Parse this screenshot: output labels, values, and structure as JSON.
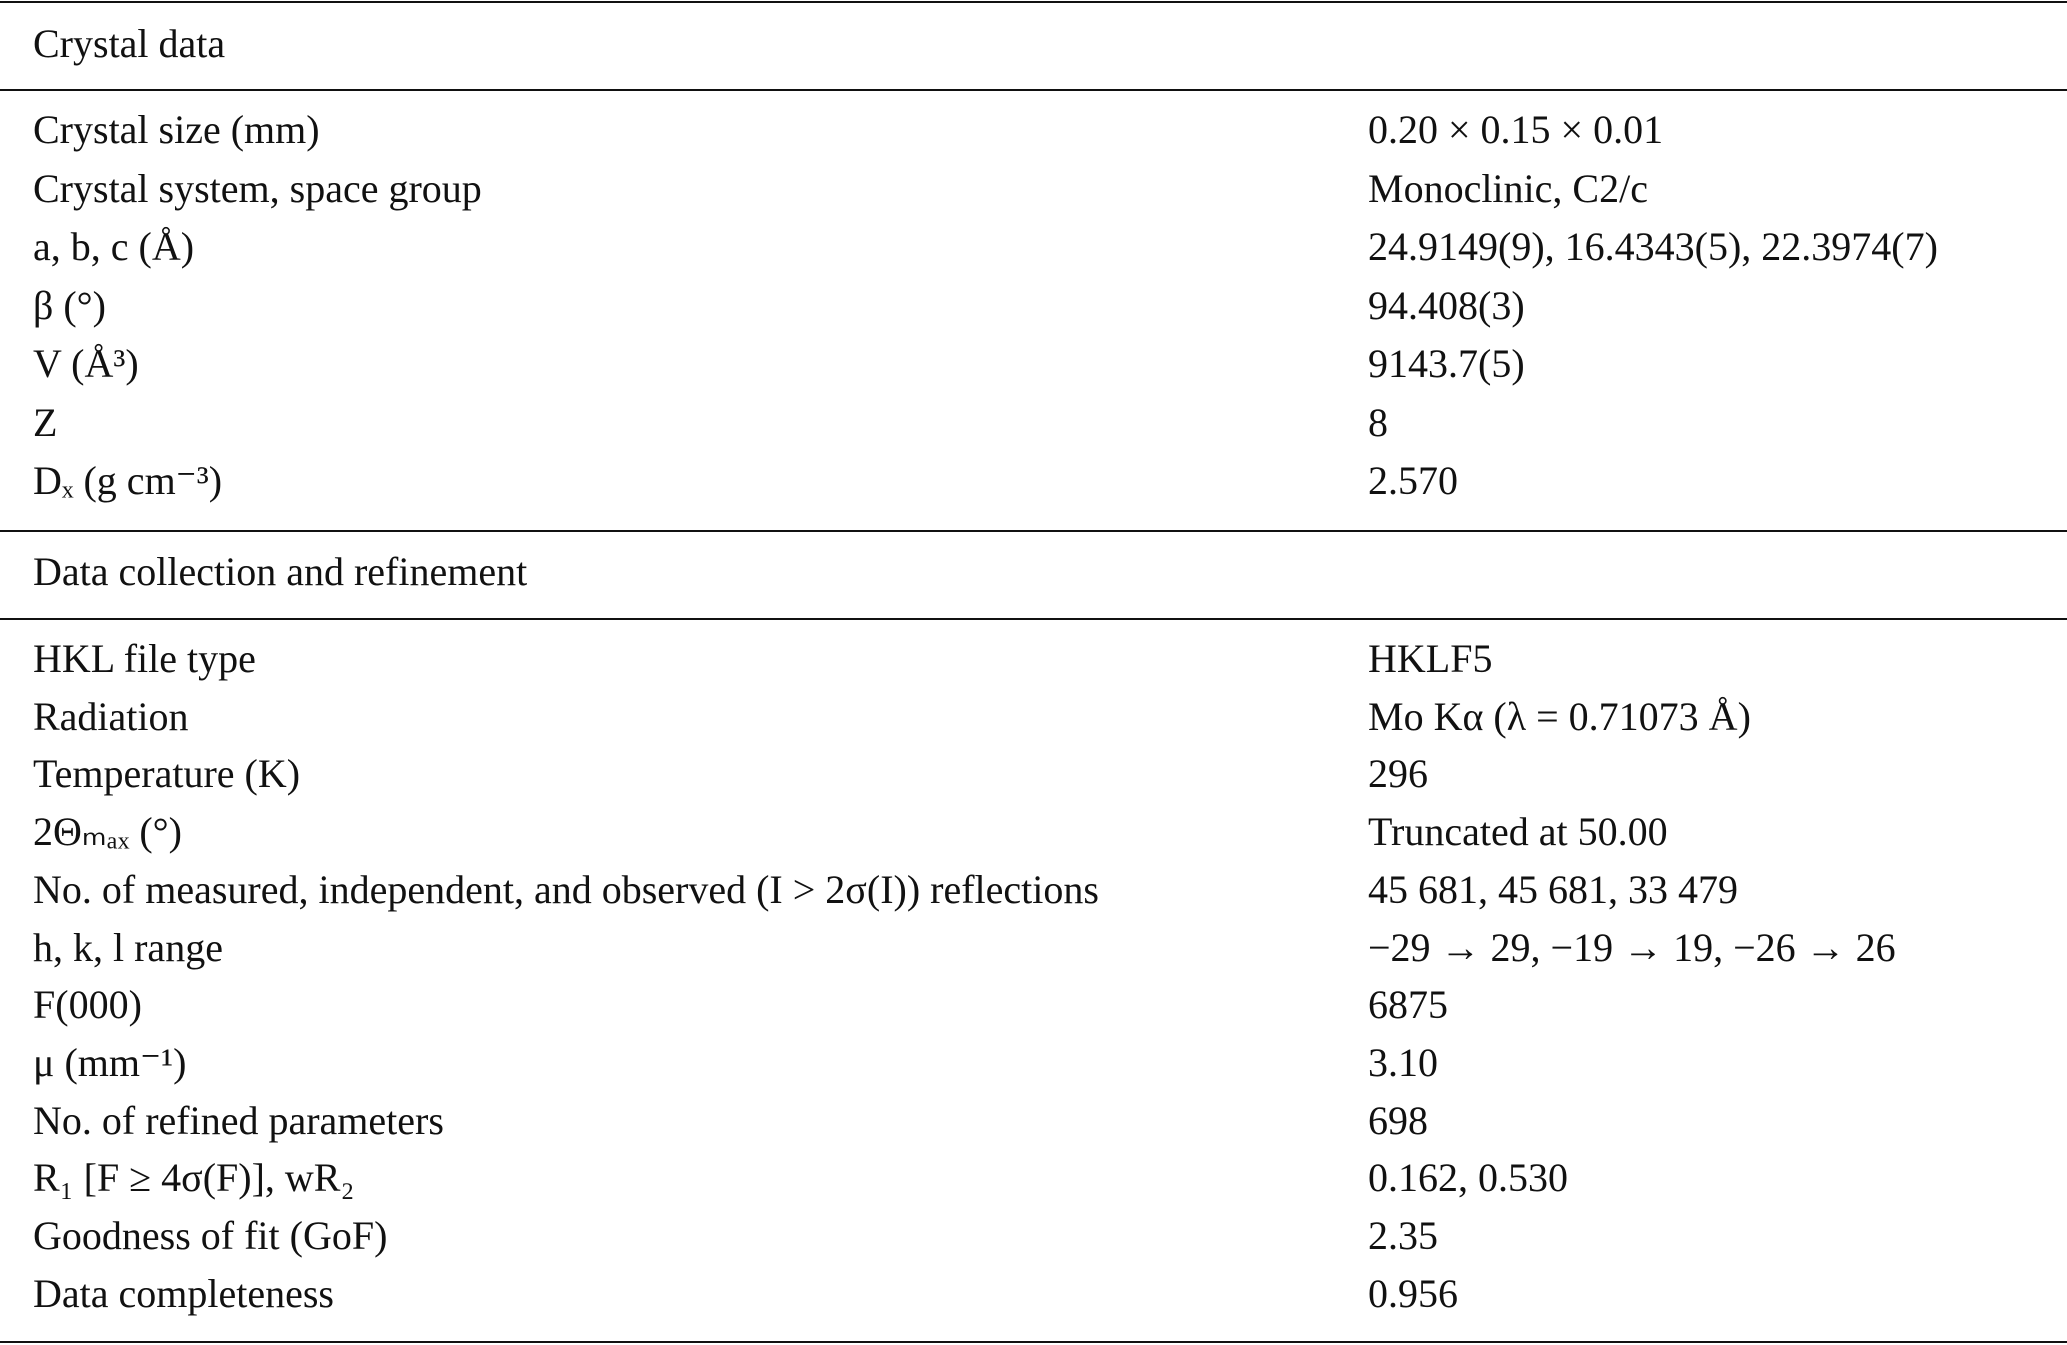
{
  "sections": [
    {
      "title": "Crystal data",
      "rows": [
        [
          "Crystal size (mm)",
          "0.20 × 0.15 × 0.01"
        ],
        [
          "Crystal system, space group",
          "Monoclinic, C2/c"
        ],
        [
          "a, b, c (Å)",
          "24.9149(9), 16.4343(5), 22.3974(7)"
        ],
        [
          "β (°)",
          "94.408(3)"
        ],
        [
          "V (Å³)",
          "9143.7(5)"
        ],
        [
          "Z",
          "8"
        ],
        [
          "Dₓ (g cm⁻³)",
          "2.570"
        ]
      ]
    },
    {
      "title": "Data collection and refinement",
      "rows": [
        [
          "HKL file type",
          "HKLF5"
        ],
        [
          "Radiation",
          "Mo Kα (λ = 0.71073 Å)"
        ],
        [
          "Temperature (K)",
          "296"
        ],
        [
          "2Θₘₐₓ (°)",
          "Truncated at 50.00"
        ],
        [
          "No. of measured, independent, and observed (I > 2σ(I)) reflections",
          "45 681, 45 681, 33 479"
        ],
        [
          "h, k, l range",
          "−29 → 29, −19 → 19, −26 → 26"
        ],
        [
          "F(000)",
          "6875"
        ],
        [
          "μ (mm⁻¹)",
          "3.10"
        ],
        [
          "No. of refined parameters",
          "698"
        ],
        [
          "R₁ [F ≥ 4σ(F)], wR₂",
          "0.162, 0.530"
        ],
        [
          "Goodness of fit (GoF)",
          "2.35"
        ],
        [
          "Data completeness",
          "0.956"
        ]
      ]
    }
  ]
}
